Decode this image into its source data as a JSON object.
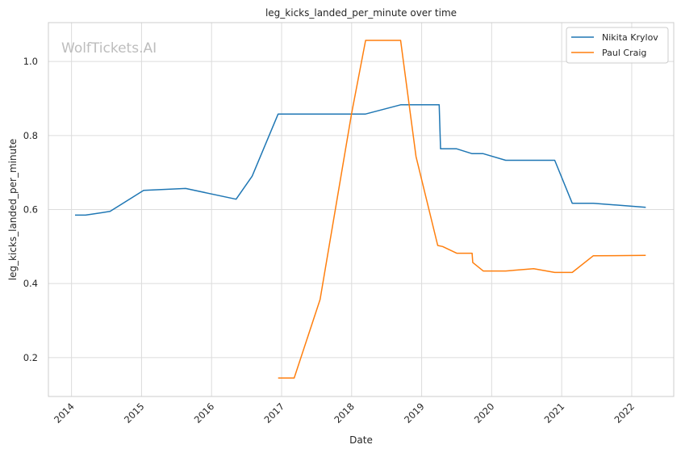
{
  "chart_data": {
    "type": "line",
    "title": "leg_kicks_landed_per_minute over time",
    "xlabel": "Date",
    "ylabel": "leg_kicks_landed_per_minute",
    "xlim": [
      2013.67,
      2022.6
    ],
    "ylim": [
      0.095,
      1.105
    ],
    "x_ticks": [
      2014,
      2015,
      2016,
      2017,
      2018,
      2019,
      2020,
      2021,
      2022
    ],
    "y_ticks": [
      0.2,
      0.4,
      0.6,
      0.8,
      1.0
    ],
    "y_tick_labels": [
      "0.2",
      "0.4",
      "0.6",
      "0.8",
      "1.0"
    ],
    "grid": true,
    "legend_position": "top-right",
    "watermark": "WolfTickets.AI",
    "series": [
      {
        "name": "Nikita Krylov",
        "color": "#1f77b4",
        "x": [
          2014.05,
          2014.2,
          2014.55,
          2015.03,
          2015.63,
          2016.35,
          2016.58,
          2016.95,
          2017.3,
          2017.8,
          2018.2,
          2018.7,
          2019.2,
          2019.25,
          2019.27,
          2019.5,
          2019.72,
          2019.88,
          2020.2,
          2020.6,
          2020.9,
          2021.15,
          2021.45,
          2022.2
        ],
        "values": [
          0.585,
          0.585,
          0.595,
          0.652,
          0.657,
          0.628,
          0.69,
          0.858,
          0.858,
          0.858,
          0.858,
          0.883,
          0.883,
          0.883,
          0.764,
          0.764,
          0.751,
          0.751,
          0.733,
          0.733,
          0.733,
          0.617,
          0.617,
          0.606
        ]
      },
      {
        "name": "Paul Craig",
        "color": "#ff7f0e",
        "x": [
          2016.95,
          2017.18,
          2017.55,
          2018.0,
          2018.2,
          2018.7,
          2018.92,
          2019.23,
          2019.3,
          2019.5,
          2019.72,
          2019.73,
          2019.88,
          2020.2,
          2020.6,
          2020.9,
          2021.15,
          2021.45,
          2022.2
        ],
        "values": [
          0.145,
          0.145,
          0.357,
          0.86,
          1.057,
          1.057,
          0.743,
          0.503,
          0.5,
          0.482,
          0.482,
          0.457,
          0.434,
          0.434,
          0.44,
          0.43,
          0.43,
          0.475,
          0.476
        ]
      }
    ]
  }
}
